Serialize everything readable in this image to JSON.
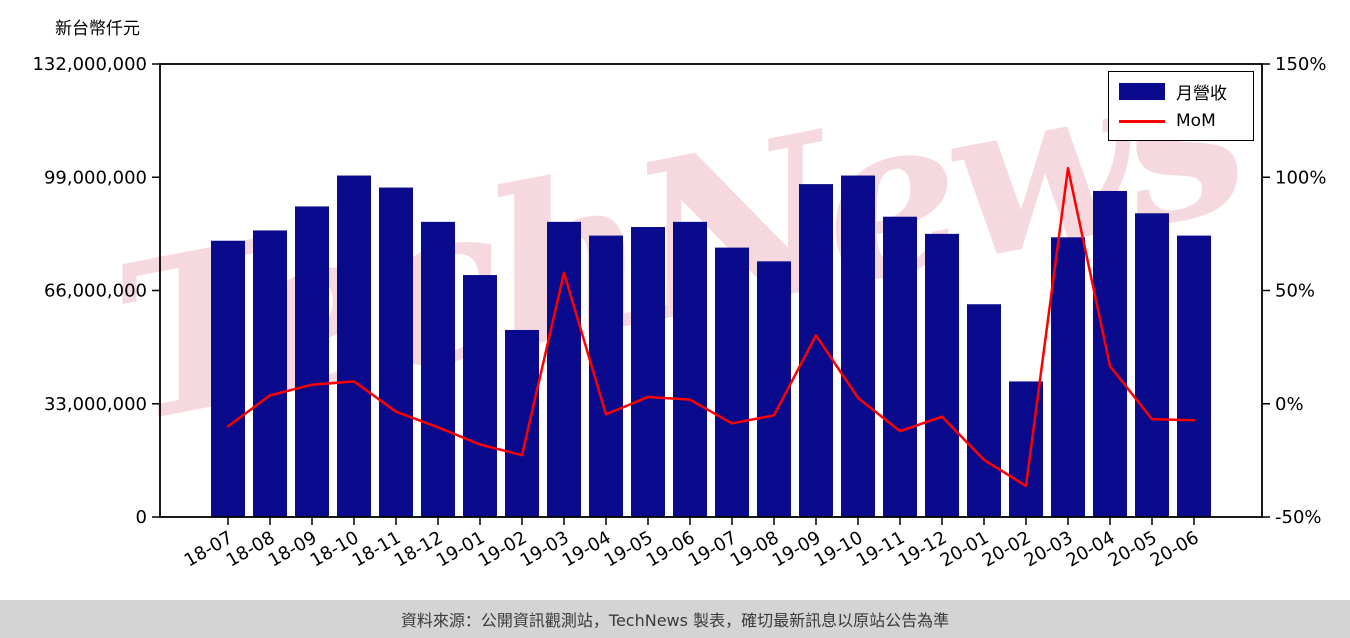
{
  "header": {
    "unit_label": "新台幣仟元"
  },
  "watermark": {
    "text": "TechNews"
  },
  "legend": {
    "items": [
      {
        "label": "月營收",
        "type": "bar",
        "color": "#0a0a8c"
      },
      {
        "label": "MoM",
        "type": "line",
        "color": "#fe0000"
      }
    ]
  },
  "footer": {
    "text": "資料來源：公開資訊觀測站，TechNews 製表，確切最新訊息以原站公告為準"
  },
  "colors": {
    "bar": "#0a0a8c",
    "line": "#fe0000",
    "axis": "#000000",
    "footer_bg": "#d4d4d4"
  },
  "chart_data": {
    "type": "bar",
    "title": "",
    "categories": [
      "18-07",
      "18-08",
      "18-09",
      "18-10",
      "18-11",
      "18-12",
      "19-01",
      "19-02",
      "19-03",
      "19-04",
      "19-05",
      "19-06",
      "19-07",
      "19-08",
      "19-09",
      "19-10",
      "19-11",
      "19-12",
      "20-01",
      "20-02",
      "20-03",
      "20-04",
      "20-05",
      "20-06"
    ],
    "series": [
      {
        "name": "月營收",
        "type": "bar",
        "axis": "left",
        "color": "#0a0a8c",
        "values": [
          80500000,
          83500000,
          90500000,
          99500000,
          96000000,
          86000000,
          70500000,
          54500000,
          86000000,
          82000000,
          84500000,
          86000000,
          78500000,
          74500000,
          97000000,
          99500000,
          87500000,
          82500000,
          62000000,
          39500000,
          81500000,
          95000000,
          88500000,
          82000000
        ]
      },
      {
        "name": "MoM",
        "type": "line",
        "axis": "right",
        "color": "#fe0000",
        "values": [
          -10,
          3.7,
          8.4,
          9.9,
          -3.5,
          -10.4,
          -18,
          -22.7,
          57.8,
          -4.7,
          3,
          1.8,
          -8.7,
          -5.1,
          30.2,
          2.6,
          -12.1,
          -5.7,
          -24.8,
          -36.3,
          104,
          16.6,
          -6.8,
          -7.3
        ]
      }
    ],
    "left_axis": {
      "label": "新台幣仟元",
      "range": [
        0,
        132000000
      ],
      "ticks": [
        0,
        33000000,
        66000000,
        99000000,
        132000000
      ],
      "tick_labels": [
        "0",
        "33,000,000",
        "66,000,000",
        "99,000,000",
        "132,000,000"
      ]
    },
    "right_axis": {
      "label": "",
      "range": [
        -50,
        150
      ],
      "ticks": [
        -50,
        0,
        50,
        100,
        150
      ],
      "tick_labels": [
        "-50%",
        "0%",
        "50%",
        "100%",
        "150%"
      ]
    },
    "grid": false,
    "legend_position": "top-right"
  }
}
